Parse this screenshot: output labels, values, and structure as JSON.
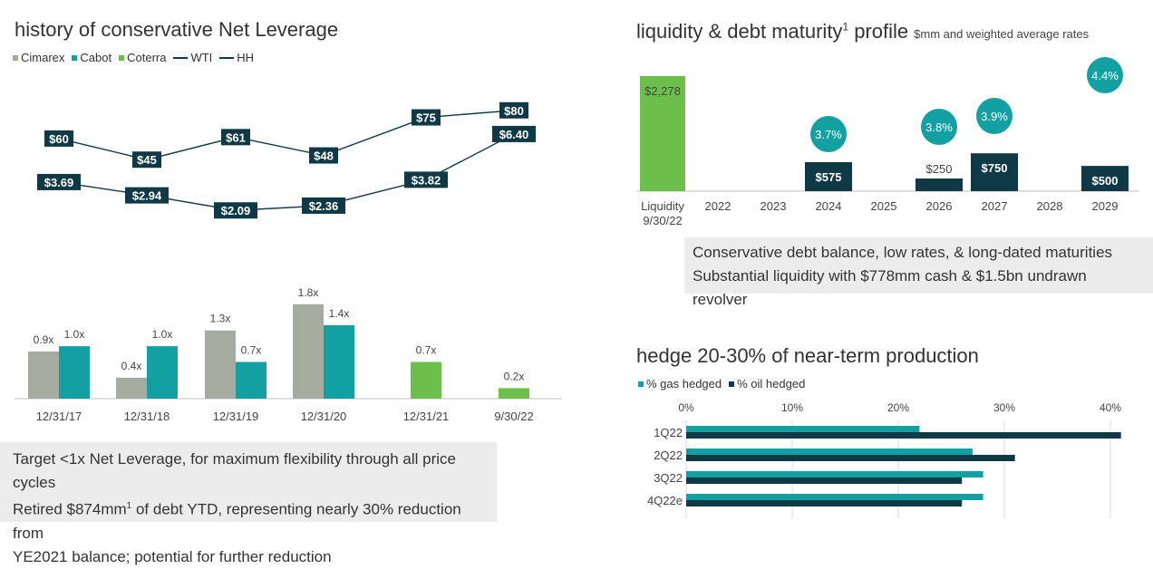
{
  "left": {
    "title": "history of conservative Net Leverage",
    "legend": [
      {
        "label": "Cimarex",
        "type": "square",
        "color": "#a6aba0"
      },
      {
        "label": "Cabot",
        "type": "square",
        "color": "#13a0a3"
      },
      {
        "label": "Coterra",
        "type": "square",
        "color": "#6cbf4a"
      },
      {
        "label": "WTI",
        "type": "line",
        "color": "#0f3a45"
      },
      {
        "label": "HH",
        "type": "line",
        "color": "#0f3a45"
      }
    ],
    "note_line1": "Target <1x Net Leverage, for maximum flexibility through all price cycles",
    "note_line2a": "Retired $874mm",
    "note_sup": "1",
    "note_line2b": " of debt YTD, representing nearly 30% reduction from",
    "note_line3": "YE2021 balance; potential for further reduction"
  },
  "right_top": {
    "title": "liquidity & debt maturity",
    "title_sup": "1",
    "title_rest": " profile",
    "subtitle": "$mm and weighted average rates",
    "note_line1": "Conservative debt balance, low rates, & long-dated maturities",
    "note_line2": "Substantial liquidity with $778mm cash & $1.5bn undrawn revolver"
  },
  "right_bottom": {
    "title": "hedge 20-30% of near-term production",
    "legend": [
      {
        "label": "% gas hedged",
        "color": "#13a0a3"
      },
      {
        "label": "% oil hedged",
        "color": "#0f3a45"
      }
    ]
  },
  "chart_data": [
    {
      "type": "line",
      "categories": [
        "12/31/17",
        "12/31/18",
        "12/31/19",
        "12/31/20",
        "12/31/21",
        "9/30/22"
      ],
      "series": [
        {
          "name": "WTI",
          "values": [
            60,
            45,
            61,
            48,
            75,
            80
          ],
          "labels": [
            "$60",
            "$45",
            "$61",
            "$48",
            "$75",
            "$80"
          ]
        },
        {
          "name": "HH",
          "values": [
            3.69,
            2.94,
            2.09,
            2.36,
            3.82,
            6.4
          ],
          "labels": [
            "$3.69",
            "$2.94",
            "$2.09",
            "$2.36",
            "$3.82",
            "$6.40"
          ]
        }
      ]
    },
    {
      "type": "bar",
      "categories": [
        "12/31/17",
        "12/31/18",
        "12/31/19",
        "12/31/20",
        "12/31/21",
        "9/30/22"
      ],
      "series": [
        {
          "name": "Cimarex",
          "color": "#a6aba0",
          "values": [
            0.9,
            0.4,
            1.3,
            1.8,
            null,
            null
          ],
          "labels": [
            "0.9x",
            "0.4x",
            "1.3x",
            "1.8x",
            "",
            ""
          ]
        },
        {
          "name": "Cabot",
          "color": "#13a0a3",
          "values": [
            1.0,
            1.0,
            0.7,
            1.4,
            null,
            null
          ],
          "labels": [
            "1.0x",
            "1.0x",
            "0.7x",
            "1.4x",
            "",
            ""
          ]
        },
        {
          "name": "Coterra",
          "color": "#6cbf4a",
          "values": [
            null,
            null,
            null,
            null,
            0.7,
            0.2
          ],
          "labels": [
            "",
            "",
            "",
            "",
            "0.7x",
            "0.2x"
          ]
        }
      ],
      "ylim": [
        0,
        1.9
      ]
    },
    {
      "type": "bar",
      "categories": [
        "Liquidity 9/30/22",
        "2022",
        "2023",
        "2024",
        "2025",
        "2026",
        "2027",
        "2028",
        "2029"
      ],
      "category_lines": [
        [
          "Liquidity",
          "9/30/22"
        ],
        [
          "2022"
        ],
        [
          "2023"
        ],
        [
          "2024"
        ],
        [
          "2025"
        ],
        [
          "2026"
        ],
        [
          "2027"
        ],
        [
          "2028"
        ],
        [
          "2029"
        ]
      ],
      "values": [
        2278,
        null,
        null,
        575,
        null,
        250,
        750,
        null,
        500
      ],
      "value_labels": [
        "$2,278",
        "",
        "",
        "$575",
        "",
        "$250",
        "$750",
        "",
        "$500"
      ],
      "rates": [
        null,
        null,
        null,
        "3.7%",
        null,
        "3.8%",
        "3.9%",
        null,
        "4.4%"
      ],
      "colors": [
        "#6cbf4a",
        "#0f3a45",
        "#0f3a45",
        "#0f3a45",
        "#0f3a45",
        "#0f3a45",
        "#0f3a45",
        "#0f3a45",
        "#0f3a45"
      ],
      "ylim": [
        0,
        2400
      ]
    },
    {
      "type": "bar",
      "orientation": "horizontal",
      "categories": [
        "1Q22",
        "2Q22",
        "3Q22",
        "4Q22e"
      ],
      "series": [
        {
          "name": "% gas hedged",
          "color": "#13a0a3",
          "values": [
            22,
            27,
            28,
            28
          ]
        },
        {
          "name": "% oil hedged",
          "color": "#0f3a45",
          "values": [
            41,
            31,
            26,
            26
          ]
        }
      ],
      "xticks": [
        "0%",
        "10%",
        "20%",
        "30%",
        "40%"
      ],
      "xlim": [
        0,
        40
      ]
    }
  ]
}
